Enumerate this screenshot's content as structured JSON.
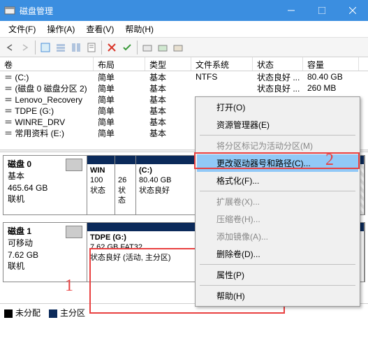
{
  "title": "磁盘管理",
  "menu": {
    "file": "文件(F)",
    "action": "操作(A)",
    "view": "查看(V)",
    "help": "帮助(H)"
  },
  "columns": {
    "volume": "卷",
    "layout": "布局",
    "type": "类型",
    "filesystem": "文件系统",
    "status": "状态",
    "capacity": "容量"
  },
  "rows": [
    {
      "vol": "(C:)",
      "lay": "简单",
      "typ": "基本",
      "fs": "NTFS",
      "st": "状态良好 ...",
      "cap": "80.40 GB"
    },
    {
      "vol": "(磁盘 0 磁盘分区 2)",
      "lay": "简单",
      "typ": "基本",
      "fs": "",
      "st": "状态良好 ...",
      "cap": "260 MB"
    },
    {
      "vol": "Lenovo_Recovery",
      "lay": "简单",
      "typ": "基本",
      "fs": "",
      "st": "",
      "cap": ""
    },
    {
      "vol": "TDPE (G:)",
      "lay": "简单",
      "typ": "基本",
      "fs": "",
      "st": "",
      "cap": ""
    },
    {
      "vol": "WINRE_DRV",
      "lay": "简单",
      "typ": "基本",
      "fs": "",
      "st": "",
      "cap": ""
    },
    {
      "vol": "常用资料 (E:)",
      "lay": "简单",
      "typ": "基本",
      "fs": "",
      "st": "",
      "cap": ""
    }
  ],
  "disk0": {
    "header": "磁盘 0",
    "kind": "基本",
    "size": "465.64 GB",
    "state": "联机",
    "parts": [
      {
        "label": "WIN",
        "line2": "100",
        "line3": "状态"
      },
      {
        "label": "",
        "line2": "26",
        "line3": "状态"
      },
      {
        "label": "(C:)",
        "line2": "80.40 GB",
        "line3": "状态良好"
      }
    ]
  },
  "disk1": {
    "header": "磁盘 1",
    "kind": "可移动",
    "size": "7.62 GB",
    "state": "联机",
    "part": {
      "label": "TDPE  (G:)",
      "size": "7.62 GB FAT32",
      "status": "状态良好 (活动, 主分区)"
    }
  },
  "legend": {
    "unalloc": "未分配",
    "primary": "主分区"
  },
  "ctx": {
    "open": "打开(O)",
    "explorer": "资源管理器(E)",
    "active": "将分区标记为活动分区(M)",
    "change": "更改驱动器号和路径(C)...",
    "format": "格式化(F)...",
    "extend": "扩展卷(X)...",
    "shrink": "压缩卷(H)...",
    "mirror": "添加镜像(A)...",
    "delete": "删除卷(D)...",
    "props": "属性(P)",
    "help": "帮助(H)"
  },
  "anno": {
    "one": "1",
    "two": "2"
  },
  "colors": {
    "titlebar": "#3b8ee0",
    "stripe": "#0b2a5a",
    "highlight": "#91c9f7",
    "red": "#e94040",
    "unalloc": "#000000"
  }
}
